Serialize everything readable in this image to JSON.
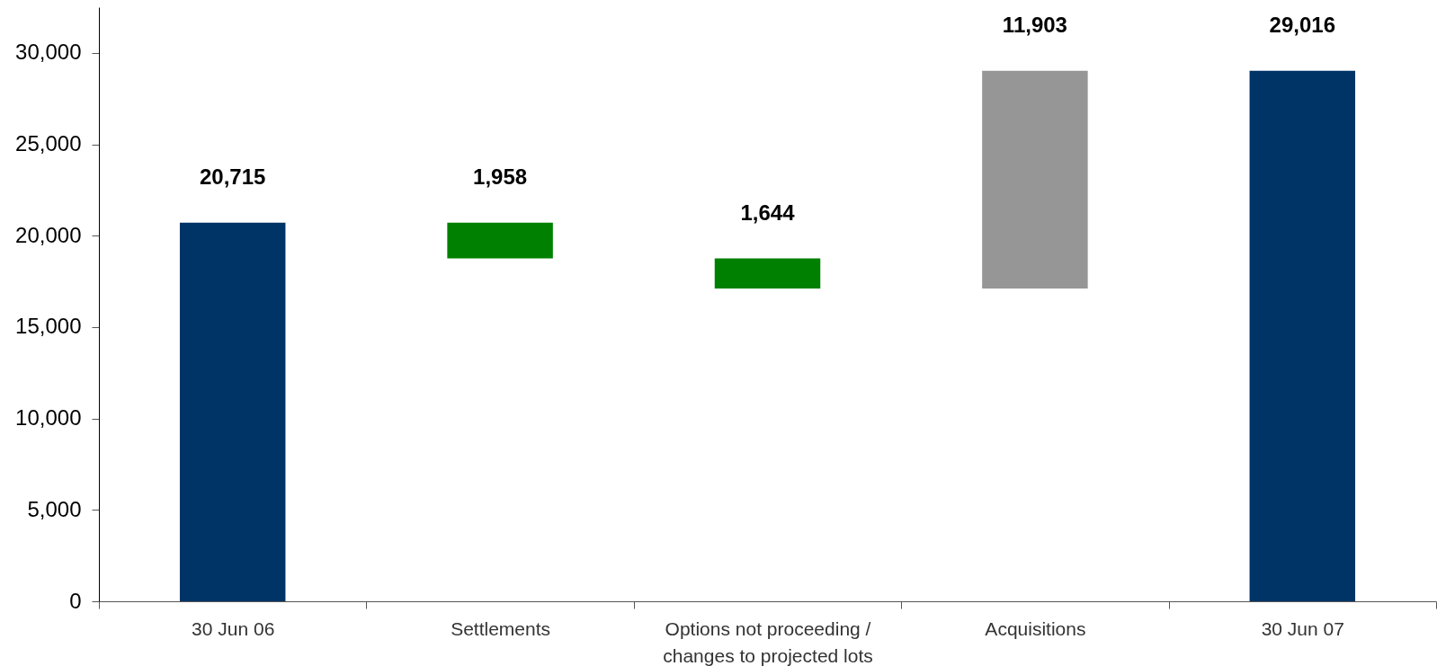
{
  "chart_data": {
    "type": "bar",
    "categories": [
      "30 Jun 06",
      "Settlements",
      "Options not proceeding / changes to projected lots",
      "Acquisitions",
      "30 Jun 07"
    ],
    "values": [
      20715,
      1958,
      1644,
      11903,
      29016
    ],
    "base": [
      0,
      18757,
      17113,
      17113,
      0
    ],
    "colors": [
      "#003366",
      "#008000",
      "#008000",
      "#969696",
      "#003366"
    ],
    "value_labels": [
      "20,715",
      "1,958",
      "1,644",
      "11,903",
      "29,016"
    ],
    "ylim": [
      0,
      32500
    ],
    "yticks": [
      0,
      {
        "value": 5000,
        "label": "5,000"
      },
      {
        "value": 10000,
        "label": "10,000"
      },
      {
        "value": 15000,
        "label": "15,000"
      },
      {
        "value": 20000,
        "label": "20,000"
      },
      {
        "value": 25000,
        "label": "25,000"
      },
      {
        "value": 30000,
        "label": "30,000"
      }
    ]
  }
}
